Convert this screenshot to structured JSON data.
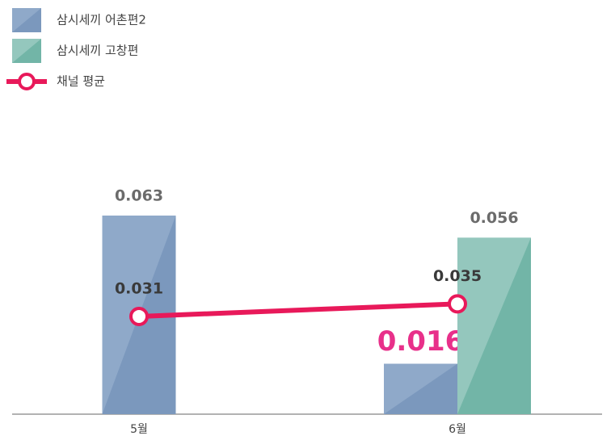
{
  "chart_data": {
    "type": "bar",
    "categories": [
      "5월",
      "6월"
    ],
    "series": [
      {
        "name": "삼시세끼 어촌편2",
        "color": "#8fa9c9",
        "shade": "#7b98bd",
        "values": [
          0.063,
          0.016
        ],
        "highlight_index": 1,
        "highlight_color": "#e8308a"
      },
      {
        "name": "삼시세끼 고창편",
        "color": "#94c7bd",
        "shade": "#72b5a7",
        "values": [
          null,
          0.056
        ]
      },
      {
        "name": "채널 평균",
        "type": "line",
        "color": "#e8195a",
        "values": [
          0.031,
          0.035
        ]
      }
    ],
    "legend": "top-left"
  }
}
